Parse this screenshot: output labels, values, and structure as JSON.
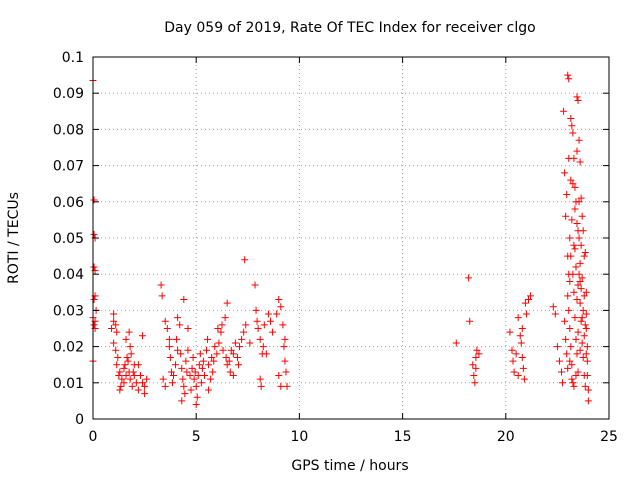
{
  "chart_data": {
    "type": "scatter",
    "title": "Day 059 of 2019, Rate Of TEC Index for receiver clgo",
    "xlabel": "GPS time / hours",
    "ylabel": "ROTI / TECUs",
    "xlim": [
      0,
      25
    ],
    "ylim": [
      0,
      0.1
    ],
    "grid": true,
    "marker": "+",
    "color": "#ff0000",
    "x_ticks": [
      "0",
      "5",
      "10",
      "15",
      "20",
      "25"
    ],
    "y_ticks": [
      "0",
      "0.01",
      "0.02",
      "0.03",
      "0.04",
      "0.05",
      "0.06",
      "0.07",
      "0.08",
      "0.09",
      "0.1"
    ],
    "x_tick_values": [
      0,
      5,
      10,
      15,
      20,
      25
    ],
    "y_tick_values": [
      0,
      0.01,
      0.02,
      0.03,
      0.04,
      0.05,
      0.06,
      0.07,
      0.08,
      0.09,
      0.1
    ],
    "series": [
      {
        "name": "ROTI",
        "points": [
          [
            0.0,
            0.0935
          ],
          [
            0.05,
            0.0605
          ],
          [
            0.05,
            0.051
          ],
          [
            0.1,
            0.05
          ],
          [
            0.05,
            0.042
          ],
          [
            0.1,
            0.041
          ],
          [
            0.1,
            0.034
          ],
          [
            0.05,
            0.033
          ],
          [
            0.0,
            0.028
          ],
          [
            0.05,
            0.026
          ],
          [
            0.1,
            0.025
          ],
          [
            0.0,
            0.016
          ],
          [
            0.15,
            0.03
          ],
          [
            0.1,
            0.027
          ],
          [
            0.9,
            0.025
          ],
          [
            1.0,
            0.027
          ],
          [
            1.1,
            0.026
          ],
          [
            1.0,
            0.029
          ],
          [
            1.15,
            0.024
          ],
          [
            1.0,
            0.021
          ],
          [
            1.1,
            0.019
          ],
          [
            1.2,
            0.017
          ],
          [
            1.15,
            0.015
          ],
          [
            1.3,
            0.013
          ],
          [
            1.25,
            0.012
          ],
          [
            1.4,
            0.011
          ],
          [
            1.35,
            0.009
          ],
          [
            1.5,
            0.014
          ],
          [
            1.5,
            0.01
          ],
          [
            1.6,
            0.012
          ],
          [
            1.55,
            0.015
          ],
          [
            1.65,
            0.017
          ],
          [
            1.7,
            0.016
          ],
          [
            1.75,
            0.013
          ],
          [
            1.8,
            0.011
          ],
          [
            1.85,
            0.018
          ],
          [
            1.8,
            0.02
          ],
          [
            1.9,
            0.009
          ],
          [
            1.95,
            0.013
          ],
          [
            2.0,
            0.012
          ],
          [
            2.1,
            0.01
          ],
          [
            2.2,
            0.008
          ],
          [
            2.3,
            0.012
          ],
          [
            2.4,
            0.01
          ],
          [
            2.5,
            0.009
          ],
          [
            2.6,
            0.011
          ],
          [
            2.5,
            0.007
          ],
          [
            1.75,
            0.024
          ],
          [
            2.2,
            0.015
          ],
          [
            1.6,
            0.022
          ],
          [
            2.0,
            0.015
          ],
          [
            1.3,
            0.008
          ],
          [
            2.4,
            0.023
          ],
          [
            3.3,
            0.037
          ],
          [
            3.35,
            0.034
          ],
          [
            3.5,
            0.027
          ],
          [
            3.6,
            0.025
          ],
          [
            3.7,
            0.02
          ],
          [
            3.75,
            0.017
          ],
          [
            3.8,
            0.013
          ],
          [
            3.85,
            0.01
          ],
          [
            3.9,
            0.012
          ],
          [
            4.0,
            0.015
          ],
          [
            4.05,
            0.022
          ],
          [
            4.1,
            0.028
          ],
          [
            4.2,
            0.026
          ],
          [
            4.25,
            0.018
          ],
          [
            4.3,
            0.014
          ],
          [
            4.35,
            0.011
          ],
          [
            4.4,
            0.009
          ],
          [
            4.45,
            0.007
          ],
          [
            4.5,
            0.016
          ],
          [
            4.55,
            0.013
          ],
          [
            4.6,
            0.019
          ],
          [
            4.7,
            0.012
          ],
          [
            4.75,
            0.008
          ],
          [
            4.8,
            0.014
          ],
          [
            4.85,
            0.017
          ],
          [
            4.9,
            0.011
          ],
          [
            4.95,
            0.013
          ],
          [
            5.0,
            0.009
          ],
          [
            5.05,
            0.006
          ],
          [
            5.1,
            0.012
          ],
          [
            5.15,
            0.015
          ],
          [
            5.2,
            0.018
          ],
          [
            5.25,
            0.01
          ],
          [
            5.3,
            0.014
          ],
          [
            5.35,
            0.016
          ],
          [
            5.4,
            0.012
          ],
          [
            5.5,
            0.019
          ],
          [
            5.55,
            0.022
          ],
          [
            5.6,
            0.015
          ],
          [
            5.7,
            0.011
          ],
          [
            5.75,
            0.017
          ],
          [
            5.8,
            0.013
          ],
          [
            5.85,
            0.016
          ],
          [
            5.9,
            0.02
          ],
          [
            6.0,
            0.018
          ],
          [
            6.05,
            0.025
          ],
          [
            6.1,
            0.021
          ],
          [
            6.2,
            0.024
          ],
          [
            6.25,
            0.026
          ],
          [
            6.3,
            0.019
          ],
          [
            6.4,
            0.028
          ],
          [
            6.45,
            0.017
          ],
          [
            6.5,
            0.015
          ],
          [
            6.6,
            0.016
          ],
          [
            6.65,
            0.013
          ],
          [
            6.7,
            0.019
          ],
          [
            6.8,
            0.018
          ],
          [
            6.9,
            0.021
          ],
          [
            7.0,
            0.017
          ],
          [
            7.05,
            0.015
          ],
          [
            7.1,
            0.02
          ],
          [
            7.2,
            0.022
          ],
          [
            7.3,
            0.024
          ],
          [
            7.4,
            0.026
          ],
          [
            7.35,
            0.044
          ],
          [
            7.9,
            0.03
          ],
          [
            7.95,
            0.027
          ],
          [
            8.0,
            0.025
          ],
          [
            8.1,
            0.022
          ],
          [
            8.2,
            0.018
          ],
          [
            8.25,
            0.02
          ],
          [
            8.3,
            0.026
          ],
          [
            8.5,
            0.029
          ],
          [
            8.6,
            0.027
          ],
          [
            8.7,
            0.024
          ],
          [
            8.9,
            0.029
          ],
          [
            9.0,
            0.033
          ],
          [
            9.1,
            0.031
          ],
          [
            9.2,
            0.026
          ],
          [
            9.25,
            0.02
          ],
          [
            9.3,
            0.016
          ],
          [
            9.35,
            0.013
          ],
          [
            9.4,
            0.009
          ],
          [
            9.3,
            0.022
          ],
          [
            3.4,
            0.011
          ],
          [
            3.5,
            0.009
          ],
          [
            6.5,
            0.032
          ],
          [
            4.4,
            0.033
          ],
          [
            7.85,
            0.037
          ],
          [
            8.1,
            0.011
          ],
          [
            8.15,
            0.009
          ],
          [
            5.0,
            0.004
          ],
          [
            4.3,
            0.005
          ],
          [
            6.8,
            0.012
          ],
          [
            9.0,
            0.012
          ],
          [
            9.1,
            0.009
          ],
          [
            7.6,
            0.021
          ],
          [
            8.4,
            0.018
          ],
          [
            5.6,
            0.008
          ],
          [
            4.6,
            0.025
          ],
          [
            3.7,
            0.022
          ],
          [
            4.1,
            0.019
          ],
          [
            17.6,
            0.021
          ],
          [
            18.2,
            0.039
          ],
          [
            18.25,
            0.027
          ],
          [
            18.4,
            0.015
          ],
          [
            18.45,
            0.012
          ],
          [
            18.5,
            0.01
          ],
          [
            18.55,
            0.017
          ],
          [
            18.6,
            0.019
          ],
          [
            18.7,
            0.018
          ],
          [
            18.55,
            0.014
          ],
          [
            20.2,
            0.024
          ],
          [
            20.3,
            0.019
          ],
          [
            20.35,
            0.016
          ],
          [
            20.4,
            0.013
          ],
          [
            20.5,
            0.018
          ],
          [
            20.6,
            0.028
          ],
          [
            20.7,
            0.023
          ],
          [
            20.75,
            0.021
          ],
          [
            20.8,
            0.017
          ],
          [
            20.85,
            0.014
          ],
          [
            20.9,
            0.011
          ],
          [
            20.95,
            0.032
          ],
          [
            21.0,
            0.029
          ],
          [
            21.1,
            0.033
          ],
          [
            21.2,
            0.034
          ],
          [
            20.6,
            0.012
          ],
          [
            20.8,
            0.025
          ],
          [
            22.3,
            0.031
          ],
          [
            22.4,
            0.029
          ],
          [
            22.5,
            0.02
          ],
          [
            22.6,
            0.016
          ],
          [
            22.7,
            0.013
          ],
          [
            22.75,
            0.01
          ],
          [
            22.8,
            0.085
          ],
          [
            22.85,
            0.068
          ],
          [
            22.9,
            0.056
          ],
          [
            22.95,
            0.062
          ],
          [
            23.0,
            0.045
          ],
          [
            23.0,
            0.095
          ],
          [
            23.05,
            0.094
          ],
          [
            23.1,
            0.038
          ],
          [
            23.15,
            0.083
          ],
          [
            23.2,
            0.081
          ],
          [
            23.25,
            0.079
          ],
          [
            23.3,
            0.072
          ],
          [
            23.35,
            0.064
          ],
          [
            23.4,
            0.06
          ],
          [
            23.45,
            0.089
          ],
          [
            23.5,
            0.088
          ],
          [
            23.55,
            0.077
          ],
          [
            23.6,
            0.071
          ],
          [
            23.65,
            0.061
          ],
          [
            23.7,
            0.056
          ],
          [
            23.75,
            0.052
          ],
          [
            23.8,
            0.045
          ],
          [
            23.85,
            0.046
          ],
          [
            23.9,
            0.035
          ],
          [
            23.95,
            0.012
          ],
          [
            24.0,
            0.008
          ],
          [
            24.0,
            0.005
          ],
          [
            23.05,
            0.03
          ],
          [
            23.1,
            0.025
          ],
          [
            23.15,
            0.02
          ],
          [
            23.2,
            0.015
          ],
          [
            23.25,
            0.01
          ],
          [
            23.3,
            0.035
          ],
          [
            23.35,
            0.028
          ],
          [
            23.4,
            0.022
          ],
          [
            23.45,
            0.018
          ],
          [
            23.5,
            0.013
          ],
          [
            23.55,
            0.04
          ],
          [
            23.6,
            0.032
          ],
          [
            23.65,
            0.027
          ],
          [
            23.7,
            0.021
          ],
          [
            23.75,
            0.017
          ],
          [
            23.8,
            0.012
          ],
          [
            23.85,
            0.009
          ],
          [
            23.9,
            0.025
          ],
          [
            23.95,
            0.02
          ],
          [
            22.9,
            0.022
          ],
          [
            22.95,
            0.018
          ],
          [
            23.0,
            0.014
          ],
          [
            23.1,
            0.05
          ],
          [
            23.2,
            0.055
          ],
          [
            23.3,
            0.048
          ],
          [
            23.4,
            0.042
          ],
          [
            23.5,
            0.037
          ],
          [
            23.6,
            0.043
          ],
          [
            23.7,
            0.039
          ],
          [
            23.8,
            0.034
          ],
          [
            23.9,
            0.029
          ],
          [
            23.05,
            0.04
          ],
          [
            23.15,
            0.045
          ],
          [
            23.25,
            0.065
          ],
          [
            23.35,
            0.058
          ],
          [
            23.45,
            0.054
          ],
          [
            23.55,
            0.05
          ],
          [
            23.65,
            0.048
          ],
          [
            23.75,
            0.03
          ],
          [
            23.85,
            0.026
          ],
          [
            23.95,
            0.016
          ],
          [
            22.85,
            0.027
          ],
          [
            23.0,
            0.034
          ],
          [
            23.1,
            0.016
          ],
          [
            23.2,
            0.011
          ],
          [
            23.3,
            0.009
          ],
          [
            23.4,
            0.012
          ],
          [
            23.5,
            0.024
          ],
          [
            23.6,
            0.019
          ],
          [
            23.7,
            0.028
          ],
          [
            23.8,
            0.023
          ],
          [
            23.9,
            0.018
          ],
          [
            23.25,
            0.04
          ],
          [
            23.45,
            0.033
          ],
          [
            23.65,
            0.036
          ],
          [
            23.35,
            0.047
          ],
          [
            23.55,
            0.06
          ],
          [
            23.15,
            0.066
          ],
          [
            23.05,
            0.072
          ],
          [
            23.45,
            0.074
          ],
          [
            23.5,
            0.052
          ],
          [
            23.6,
            0.038
          ]
        ]
      }
    ]
  }
}
